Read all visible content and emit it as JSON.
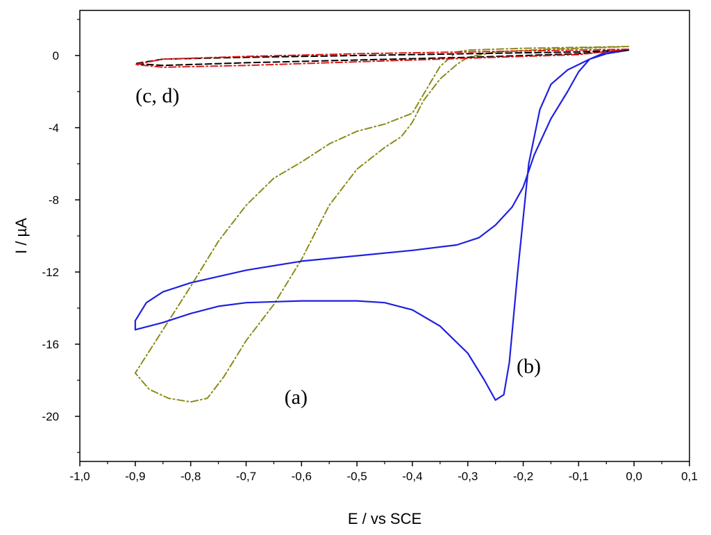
{
  "chart_data": {
    "type": "line",
    "title": "",
    "xlabel": "E / vs SCE",
    "ylabel": "I / µA",
    "xlim": [
      -1.0,
      0.1
    ],
    "ylim": [
      -22.5,
      2.5
    ],
    "grid": false,
    "legend": "none",
    "x_ticks": [
      {
        "value": -1.0,
        "label": "-1,0"
      },
      {
        "value": -0.9,
        "label": "-0,9"
      },
      {
        "value": -0.8,
        "label": "-0,8"
      },
      {
        "value": -0.7,
        "label": "-0,7"
      },
      {
        "value": -0.6,
        "label": "-0,6"
      },
      {
        "value": -0.5,
        "label": "-0,5"
      },
      {
        "value": -0.4,
        "label": "-0,4"
      },
      {
        "value": -0.3,
        "label": "-0,3"
      },
      {
        "value": -0.2,
        "label": "-0,2"
      },
      {
        "value": -0.1,
        "label": "-0,1"
      },
      {
        "value": 0.0,
        "label": "0,0"
      },
      {
        "value": 0.1,
        "label": "0,1"
      }
    ],
    "y_ticks": [
      {
        "value": 0,
        "label": "0"
      },
      {
        "value": -4,
        "label": "-4"
      },
      {
        "value": -8,
        "label": "-8"
      },
      {
        "value": -12,
        "label": "-12"
      },
      {
        "value": -16,
        "label": "-16"
      },
      {
        "value": -20,
        "label": "-20"
      }
    ],
    "series": [
      {
        "name": "(a)",
        "color": "#8b8b1a",
        "style": "dashdot",
        "points": [
          [
            -0.01,
            0.5
          ],
          [
            -0.1,
            0.45
          ],
          [
            -0.2,
            0.4
          ],
          [
            -0.3,
            0.3
          ],
          [
            -0.32,
            0.2
          ],
          [
            -0.35,
            -0.6
          ],
          [
            -0.4,
            -3.2
          ],
          [
            -0.45,
            -3.8
          ],
          [
            -0.5,
            -4.2
          ],
          [
            -0.55,
            -4.9
          ],
          [
            -0.6,
            -5.9
          ],
          [
            -0.65,
            -6.8
          ],
          [
            -0.7,
            -8.3
          ],
          [
            -0.75,
            -10.3
          ],
          [
            -0.8,
            -12.8
          ],
          [
            -0.85,
            -15.2
          ],
          [
            -0.9,
            -17.6
          ],
          [
            -0.875,
            -18.5
          ],
          [
            -0.84,
            -19.0
          ],
          [
            -0.8,
            -19.2
          ],
          [
            -0.77,
            -19.0
          ],
          [
            -0.74,
            -17.8
          ],
          [
            -0.7,
            -15.8
          ],
          [
            -0.65,
            -13.8
          ],
          [
            -0.6,
            -11.3
          ],
          [
            -0.55,
            -8.3
          ],
          [
            -0.5,
            -6.3
          ],
          [
            -0.45,
            -5.1
          ],
          [
            -0.42,
            -4.5
          ],
          [
            -0.4,
            -3.7
          ],
          [
            -0.38,
            -2.5
          ],
          [
            -0.35,
            -1.3
          ],
          [
            -0.32,
            -0.5
          ],
          [
            -0.3,
            -0.1
          ],
          [
            -0.25,
            0.2
          ],
          [
            -0.15,
            0.35
          ],
          [
            -0.05,
            0.45
          ],
          [
            -0.01,
            0.5
          ]
        ]
      },
      {
        "name": "(b)",
        "color": "#1f1fe0",
        "style": "solid",
        "points": [
          [
            -0.01,
            0.3
          ],
          [
            -0.05,
            0.2
          ],
          [
            -0.08,
            -0.2
          ],
          [
            -0.1,
            -0.9
          ],
          [
            -0.12,
            -2.0
          ],
          [
            -0.15,
            -3.5
          ],
          [
            -0.18,
            -5.5
          ],
          [
            -0.2,
            -7.3
          ],
          [
            -0.22,
            -8.4
          ],
          [
            -0.25,
            -9.4
          ],
          [
            -0.28,
            -10.1
          ],
          [
            -0.32,
            -10.5
          ],
          [
            -0.4,
            -10.8
          ],
          [
            -0.5,
            -11.1
          ],
          [
            -0.6,
            -11.4
          ],
          [
            -0.7,
            -11.9
          ],
          [
            -0.8,
            -12.6
          ],
          [
            -0.85,
            -13.1
          ],
          [
            -0.88,
            -13.7
          ],
          [
            -0.9,
            -14.7
          ],
          [
            -0.9,
            -15.2
          ],
          [
            -0.85,
            -14.8
          ],
          [
            -0.8,
            -14.3
          ],
          [
            -0.75,
            -13.9
          ],
          [
            -0.7,
            -13.7
          ],
          [
            -0.6,
            -13.6
          ],
          [
            -0.5,
            -13.6
          ],
          [
            -0.45,
            -13.7
          ],
          [
            -0.4,
            -14.1
          ],
          [
            -0.35,
            -15.0
          ],
          [
            -0.3,
            -16.5
          ],
          [
            -0.27,
            -18.0
          ],
          [
            -0.25,
            -19.1
          ],
          [
            -0.235,
            -18.8
          ],
          [
            -0.225,
            -17.0
          ],
          [
            -0.21,
            -12.0
          ],
          [
            -0.19,
            -6.0
          ],
          [
            -0.17,
            -3.0
          ],
          [
            -0.15,
            -1.6
          ],
          [
            -0.12,
            -0.8
          ],
          [
            -0.08,
            -0.2
          ],
          [
            -0.05,
            0.1
          ],
          [
            -0.01,
            0.3
          ]
        ]
      },
      {
        "name": "(c)",
        "color": "#000000",
        "style": "dashed",
        "points": [
          [
            -0.01,
            0.3
          ],
          [
            -0.1,
            0.2
          ],
          [
            -0.3,
            0.1
          ],
          [
            -0.5,
            0.0
          ],
          [
            -0.7,
            -0.1
          ],
          [
            -0.85,
            -0.2
          ],
          [
            -0.9,
            -0.45
          ],
          [
            -0.85,
            -0.55
          ],
          [
            -0.7,
            -0.4
          ],
          [
            -0.5,
            -0.25
          ],
          [
            -0.3,
            -0.1
          ],
          [
            -0.1,
            0.1
          ],
          [
            -0.01,
            0.3
          ]
        ]
      },
      {
        "name": "(d)",
        "color": "#e01818",
        "style": "dashdot",
        "points": [
          [
            -0.01,
            0.35
          ],
          [
            -0.1,
            0.3
          ],
          [
            -0.3,
            0.2
          ],
          [
            -0.5,
            0.1
          ],
          [
            -0.7,
            -0.05
          ],
          [
            -0.85,
            -0.2
          ],
          [
            -0.9,
            -0.5
          ],
          [
            -0.85,
            -0.65
          ],
          [
            -0.7,
            -0.55
          ],
          [
            -0.5,
            -0.35
          ],
          [
            -0.3,
            -0.15
          ],
          [
            -0.1,
            0.05
          ],
          [
            -0.01,
            0.35
          ]
        ]
      }
    ],
    "annotations": [
      {
        "text": "(a)",
        "x": -0.61,
        "y": -19.3
      },
      {
        "text": "(b)",
        "x": -0.19,
        "y": -17.6
      },
      {
        "text": "(c, d)",
        "x": -0.86,
        "y": -2.6
      }
    ]
  }
}
